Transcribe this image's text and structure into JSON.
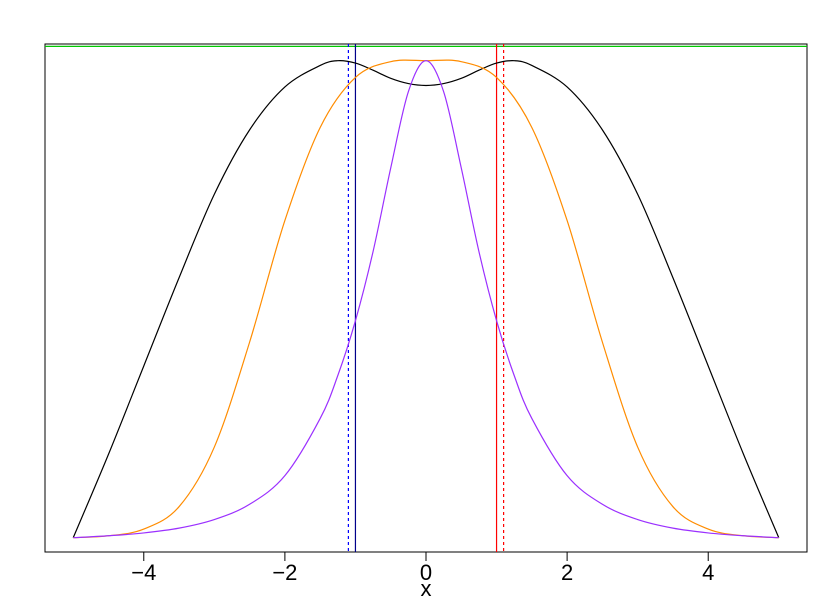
{
  "chart_data": {
    "type": "line",
    "title": "",
    "xlabel": "x",
    "ylabel": "",
    "xlim": [
      -5.4,
      5.4
    ],
    "ylim": [
      -0.03,
      1.035
    ],
    "grid": false,
    "legend": "none",
    "x_ticks": [
      -4,
      -2,
      0,
      2,
      4
    ],
    "x_tick_labels": [
      "−4",
      "−2",
      "0",
      "2",
      "4"
    ],
    "series": [
      {
        "color": "#000000",
        "x": [
          -5,
          -4.5,
          -4,
          -3.5,
          -3,
          -2.5,
          -2,
          -1.5,
          -1.25,
          -1,
          -0.75,
          -0.5,
          -0.25,
          0,
          0.25,
          0.5,
          0.75,
          1,
          1.25,
          1.5,
          2,
          2.5,
          3,
          3.5,
          4,
          4.5,
          5
        ],
        "y": [
          0,
          0.175,
          0.36,
          0.545,
          0.72,
          0.855,
          0.945,
          0.99,
          1.0,
          0.995,
          0.98,
          0.963,
          0.952,
          0.948,
          0.952,
          0.963,
          0.98,
          0.995,
          1.0,
          0.99,
          0.945,
          0.855,
          0.72,
          0.545,
          0.36,
          0.175,
          0
        ]
      },
      {
        "color": "#ff8c00",
        "x": [
          -5,
          -4.5,
          -4,
          -3.5,
          -3,
          -2.5,
          -2,
          -1.5,
          -1,
          -0.5,
          0,
          0.5,
          1,
          1.5,
          2,
          2.5,
          3,
          3.5,
          4,
          4.5,
          5
        ],
        "y": [
          0,
          0.004,
          0.018,
          0.065,
          0.19,
          0.41,
          0.665,
          0.86,
          0.965,
          0.998,
          1.0,
          0.998,
          0.965,
          0.86,
          0.665,
          0.41,
          0.19,
          0.065,
          0.018,
          0.004,
          0
        ]
      },
      {
        "color": "#9b30ff",
        "x": [
          -5,
          -4.5,
          -4,
          -3.5,
          -3,
          -2.5,
          -2,
          -1.5,
          -1.25,
          -1,
          -0.75,
          -0.5,
          -0.25,
          0,
          0.25,
          0.5,
          0.75,
          1,
          1.25,
          1.5,
          2,
          2.5,
          3,
          3.5,
          4,
          4.5,
          5
        ],
        "y": [
          0,
          0.004,
          0.01,
          0.02,
          0.038,
          0.07,
          0.13,
          0.25,
          0.34,
          0.455,
          0.6,
          0.775,
          0.935,
          1.0,
          0.935,
          0.775,
          0.6,
          0.455,
          0.34,
          0.25,
          0.13,
          0.07,
          0.038,
          0.02,
          0.01,
          0.004,
          0
        ]
      }
    ],
    "vertical_lines": [
      {
        "x": -1.1,
        "color": "#0000ff",
        "style": "dashed"
      },
      {
        "x": -1.0,
        "color": "#00008b",
        "style": "solid"
      },
      {
        "x": 1.0,
        "color": "#ff0000",
        "style": "solid"
      },
      {
        "x": 1.1,
        "color": "#ff0000",
        "style": "dashed"
      }
    ],
    "horizontal_lines": [
      {
        "y": 1.03,
        "color": "#00c800",
        "style": "solid"
      }
    ]
  }
}
